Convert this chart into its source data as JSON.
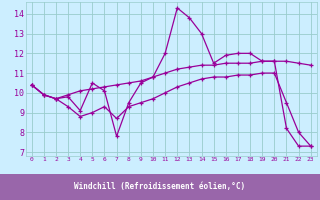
{
  "title": "",
  "xlabel": "Windchill (Refroidissement éolien,°C)",
  "bg_color": "#cceeff",
  "grid_color": "#99cccc",
  "line_color": "#990099",
  "xlabel_bg": "#9966aa",
  "xlabel_fg": "#ffffff",
  "xlim": [
    -0.5,
    23.5
  ],
  "ylim": [
    6.8,
    14.6
  ],
  "xticks": [
    0,
    1,
    2,
    3,
    4,
    5,
    6,
    7,
    8,
    9,
    10,
    11,
    12,
    13,
    14,
    15,
    16,
    17,
    18,
    19,
    20,
    21,
    22,
    23
  ],
  "yticks": [
    7,
    8,
    9,
    10,
    11,
    12,
    13,
    14
  ],
  "line1_x": [
    0,
    1,
    2,
    3,
    4,
    5,
    6,
    7,
    8,
    9,
    10,
    11,
    12,
    13,
    14,
    15,
    16,
    17,
    18,
    19,
    20,
    21,
    22,
    23
  ],
  "line1_y": [
    10.4,
    9.9,
    9.7,
    9.8,
    9.1,
    10.5,
    10.1,
    7.8,
    9.5,
    10.5,
    10.8,
    12.0,
    14.3,
    13.8,
    13.0,
    11.5,
    11.9,
    12.0,
    12.0,
    11.6,
    11.6,
    8.2,
    7.3,
    7.3
  ],
  "line2_x": [
    0,
    1,
    2,
    3,
    4,
    5,
    6,
    7,
    8,
    9,
    10,
    11,
    12,
    13,
    14,
    15,
    16,
    17,
    18,
    19,
    20,
    21,
    22,
    23
  ],
  "line2_y": [
    10.4,
    9.9,
    9.7,
    9.9,
    10.1,
    10.2,
    10.3,
    10.4,
    10.5,
    10.6,
    10.8,
    11.0,
    11.2,
    11.3,
    11.4,
    11.4,
    11.5,
    11.5,
    11.5,
    11.6,
    11.6,
    11.6,
    11.5,
    11.4
  ],
  "line3_x": [
    0,
    1,
    2,
    3,
    4,
    5,
    6,
    7,
    8,
    9,
    10,
    11,
    12,
    13,
    14,
    15,
    16,
    17,
    18,
    19,
    20,
    21,
    22,
    23
  ],
  "line3_y": [
    10.4,
    9.9,
    9.7,
    9.3,
    8.8,
    9.0,
    9.3,
    8.7,
    9.3,
    9.5,
    9.7,
    10.0,
    10.3,
    10.5,
    10.7,
    10.8,
    10.8,
    10.9,
    10.9,
    11.0,
    11.0,
    9.5,
    8.0,
    7.3
  ]
}
